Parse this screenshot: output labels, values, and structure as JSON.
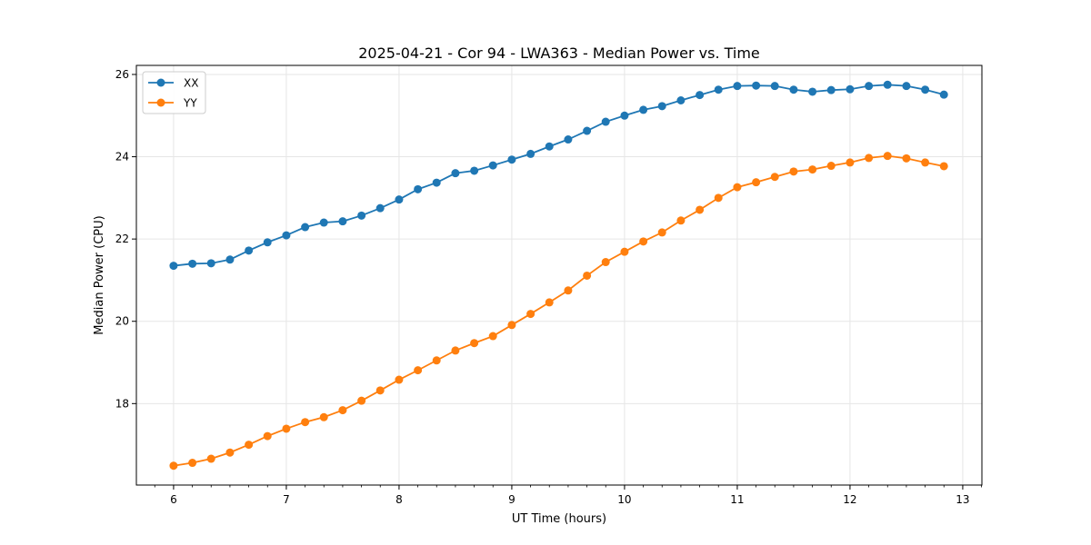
{
  "chart_data": {
    "type": "line",
    "title": "2025-04-21 - Cor 94 - LWA363 - Median Power vs. Time",
    "xlabel": "UT Time (hours)",
    "ylabel": "Median Power (CPU)",
    "xlim": [
      5.67,
      13.17
    ],
    "ylim": [
      16.02,
      26.22
    ],
    "xticks": [
      6,
      7,
      8,
      9,
      10,
      11,
      12,
      13
    ],
    "yticks": [
      18,
      20,
      22,
      24,
      26
    ],
    "grid": true,
    "legend_position": "top-left",
    "x": [
      6.0,
      6.167,
      6.333,
      6.5,
      6.667,
      6.833,
      7.0,
      7.167,
      7.333,
      7.5,
      7.667,
      7.833,
      8.0,
      8.167,
      8.333,
      8.5,
      8.667,
      8.833,
      9.0,
      9.167,
      9.333,
      9.5,
      9.667,
      9.833,
      10.0,
      10.167,
      10.333,
      10.5,
      10.667,
      10.833,
      11.0,
      11.167,
      11.333,
      11.5,
      11.667,
      11.833,
      12.0,
      12.167,
      12.333,
      12.5,
      12.667,
      12.833
    ],
    "series": [
      {
        "name": "XX",
        "color": "#1f77b4",
        "values": [
          21.35,
          21.4,
          21.41,
          21.5,
          21.72,
          21.92,
          22.09,
          22.29,
          22.4,
          22.43,
          22.57,
          22.75,
          22.96,
          23.21,
          23.37,
          23.6,
          23.66,
          23.79,
          23.93,
          24.07,
          24.25,
          24.42,
          24.63,
          24.85,
          25.0,
          25.14,
          25.23,
          25.37,
          25.5,
          25.63,
          25.72,
          25.73,
          25.72,
          25.63,
          25.58,
          25.62,
          25.64,
          25.72,
          25.75,
          25.72,
          25.63,
          25.51
        ]
      },
      {
        "name": "YY",
        "color": "#ff7f0e",
        "values": [
          16.49,
          16.56,
          16.66,
          16.81,
          17.0,
          17.21,
          17.39,
          17.55,
          17.67,
          17.84,
          18.07,
          18.32,
          18.58,
          18.81,
          19.05,
          19.29,
          19.47,
          19.64,
          19.91,
          20.18,
          20.46,
          20.75,
          21.11,
          21.44,
          21.69,
          21.94,
          22.16,
          22.45,
          22.71,
          23.0,
          23.26,
          23.38,
          23.51,
          23.64,
          23.69,
          23.78,
          23.86,
          23.97,
          24.02,
          23.96,
          23.86,
          23.77
        ]
      }
    ]
  }
}
